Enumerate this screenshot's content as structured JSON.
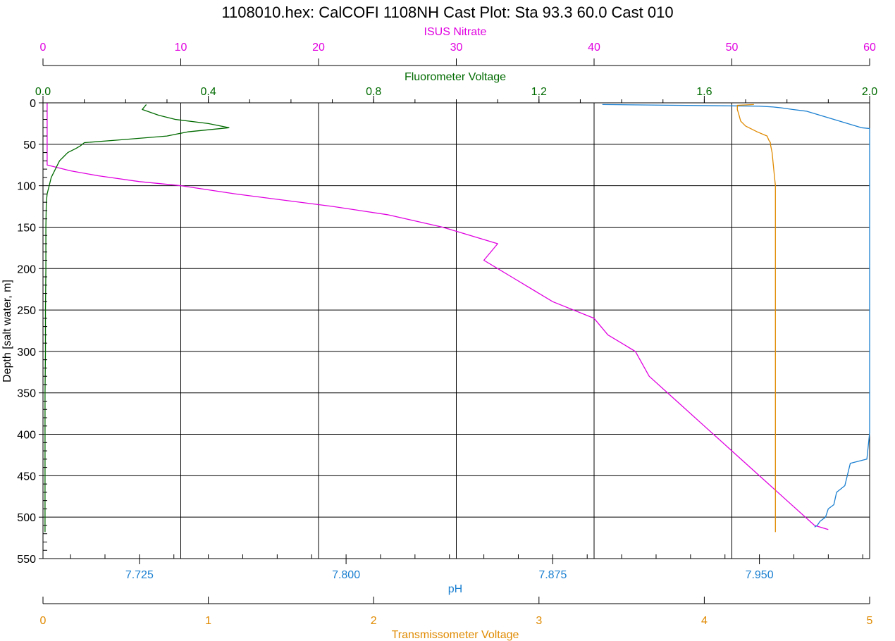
{
  "colors": {
    "nitrate": "#e000e0",
    "fluorometer": "#006a00",
    "ph": "#1a7fd0",
    "transmissometer": "#e08a00",
    "grid": "#000000"
  },
  "chart_data": {
    "type": "line",
    "title": "1108010.hex: CalCOFI 1108NH Cast Plot: Sta 93.3 60.0 Cast 010",
    "ylabel": "Depth [salt water, m]",
    "ylim": [
      0,
      550
    ],
    "y_ticks": [
      "0",
      "50",
      "100",
      "150",
      "200",
      "250",
      "300",
      "350",
      "400",
      "450",
      "500",
      "550"
    ],
    "y_reversed": true,
    "grid": true,
    "axes": {
      "nitrate": {
        "label": "ISUS Nitrate",
        "range": [
          0,
          60
        ],
        "ticks": [
          "0",
          "10",
          "20",
          "30",
          "40",
          "50",
          "60"
        ]
      },
      "fluorometer": {
        "label": "Fluorometer Voltage",
        "range": [
          0.0,
          2.0
        ],
        "ticks": [
          "0.0",
          "0.4",
          "0.8",
          "1.2",
          "1.6",
          "2.0"
        ]
      },
      "ph": {
        "label": "pH",
        "range": [
          7.69,
          7.99
        ],
        "ticks": [
          "7.725",
          "7.800",
          "7.875",
          "7.950"
        ]
      },
      "transmissometer": {
        "label": "Transmissometer Voltage",
        "range": [
          0,
          5
        ],
        "ticks": [
          "0",
          "1",
          "2",
          "3",
          "4",
          "5"
        ]
      }
    },
    "series": [
      {
        "axis": "nitrate",
        "depth": [
          0,
          75,
          82,
          88,
          95,
          100,
          110,
          125,
          135,
          150,
          170,
          190,
          210,
          240,
          260,
          280,
          300,
          330,
          360,
          390,
          420,
          450,
          480,
          510,
          515
        ],
        "values": [
          0.3,
          0.3,
          2,
          4,
          7,
          10,
          14,
          21,
          25,
          29,
          33,
          32,
          34,
          37,
          40,
          41,
          43,
          44,
          46,
          48,
          50,
          52,
          54,
          56,
          57
        ]
      },
      {
        "axis": "fluorometer",
        "depth": [
          2,
          8,
          15,
          20,
          25,
          30,
          35,
          40,
          45,
          48,
          52,
          55,
          60,
          65,
          70,
          80,
          90,
          100,
          110,
          120,
          150,
          200,
          250,
          300,
          350,
          400,
          450,
          500,
          518
        ],
        "values": [
          0.25,
          0.24,
          0.28,
          0.32,
          0.4,
          0.45,
          0.35,
          0.3,
          0.18,
          0.1,
          0.09,
          0.08,
          0.06,
          0.05,
          0.04,
          0.03,
          0.02,
          0.015,
          0.01,
          0.008,
          0.007,
          0.007,
          0.006,
          0.006,
          0.005,
          0.005,
          0.005,
          0.005,
          0.005
        ]
      },
      {
        "axis": "ph",
        "depth": [
          2,
          3,
          4,
          5,
          6,
          8,
          10,
          15,
          20,
          25,
          30,
          31,
          395,
          398,
          430,
          435,
          462,
          470,
          485,
          490,
          500,
          505,
          510,
          512
        ],
        "values": [
          7.893,
          7.92,
          7.95,
          7.955,
          7.958,
          7.962,
          7.967,
          7.972,
          7.977,
          7.982,
          7.987,
          7.99,
          7.99,
          7.99,
          7.989,
          7.983,
          7.981,
          7.978,
          7.977,
          7.975,
          7.974,
          7.972,
          7.971,
          7.97
        ]
      },
      {
        "axis": "transmissometer",
        "depth": [
          2,
          3,
          8,
          15,
          22,
          28,
          35,
          40,
          45,
          48,
          50,
          60,
          80,
          100,
          150,
          200,
          250,
          300,
          350,
          400,
          420,
          450,
          500,
          518
        ],
        "values": [
          4.3,
          4.2,
          4.2,
          4.21,
          4.22,
          4.25,
          4.32,
          4.38,
          4.39,
          4.4,
          4.4,
          4.41,
          4.42,
          4.43,
          4.43,
          4.43,
          4.43,
          4.43,
          4.43,
          4.43,
          4.43,
          4.43,
          4.43,
          4.43
        ]
      }
    ]
  }
}
